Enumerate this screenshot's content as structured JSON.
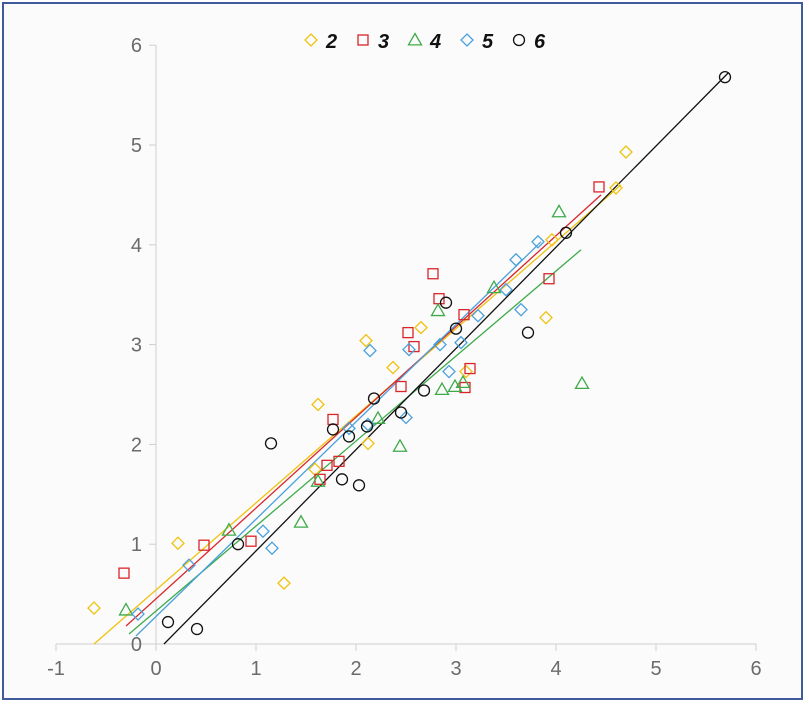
{
  "chart_data": {
    "type": "scatter",
    "title": "",
    "xlabel": "",
    "ylabel": "",
    "xlim": [
      -1,
      6
    ],
    "ylim": [
      0,
      6
    ],
    "x_ticks": [
      "-1",
      "0",
      "1",
      "2",
      "3",
      "4",
      "5",
      "6"
    ],
    "y_ticks": [
      "0",
      "1",
      "2",
      "3",
      "4",
      "5",
      "6"
    ],
    "grid": false,
    "legend_position": "top-center",
    "series": [
      {
        "name": "2",
        "color": "#f0c20f",
        "marker": "diamond",
        "points": [
          [
            -0.62,
            0.36
          ],
          [
            0.22,
            1.01
          ],
          [
            1.28,
            0.61
          ],
          [
            1.59,
            1.75
          ],
          [
            1.62,
            2.4
          ],
          [
            2.1,
            3.04
          ],
          [
            2.12,
            2.01
          ],
          [
            2.37,
            2.77
          ],
          [
            2.65,
            3.17
          ],
          [
            3.1,
            2.73
          ],
          [
            3.96,
            4.05
          ],
          [
            3.9,
            3.27
          ],
          [
            4.6,
            4.57
          ],
          [
            4.7,
            4.93
          ]
        ],
        "fit": [
          [
            -0.62,
            0.0
          ],
          [
            4.65,
            4.6
          ]
        ]
      },
      {
        "name": "3",
        "color": "#d9262b",
        "marker": "square",
        "points": [
          [
            -0.32,
            0.71
          ],
          [
            0.48,
            0.99
          ],
          [
            0.95,
            1.03
          ],
          [
            1.64,
            1.65
          ],
          [
            1.71,
            1.79
          ],
          [
            1.77,
            2.25
          ],
          [
            1.83,
            1.83
          ],
          [
            2.45,
            2.58
          ],
          [
            2.52,
            3.12
          ],
          [
            2.58,
            2.98
          ],
          [
            2.77,
            3.71
          ],
          [
            2.83,
            3.46
          ],
          [
            3.08,
            3.3
          ],
          [
            3.09,
            2.57
          ],
          [
            3.14,
            2.76
          ],
          [
            3.93,
            3.66
          ],
          [
            4.43,
            4.58
          ]
        ],
        "fit": [
          [
            -0.3,
            0.18
          ],
          [
            4.45,
            4.5
          ]
        ]
      },
      {
        "name": "4",
        "color": "#3eab4a",
        "marker": "triangle",
        "points": [
          [
            -0.3,
            0.34
          ],
          [
            0.73,
            1.14
          ],
          [
            1.45,
            1.22
          ],
          [
            1.62,
            1.63
          ],
          [
            2.22,
            2.26
          ],
          [
            2.44,
            1.98
          ],
          [
            2.82,
            3.34
          ],
          [
            2.86,
            2.55
          ],
          [
            2.99,
            2.58
          ],
          [
            3.07,
            2.62
          ],
          [
            3.38,
            3.57
          ],
          [
            4.03,
            4.33
          ],
          [
            4.26,
            2.61
          ]
        ],
        "fit": [
          [
            -0.27,
            0.1
          ],
          [
            4.25,
            3.95
          ]
        ]
      },
      {
        "name": "5",
        "color": "#4aa1dc",
        "marker": "diamond",
        "points": [
          [
            -0.18,
            0.3
          ],
          [
            0.33,
            0.79
          ],
          [
            1.07,
            1.13
          ],
          [
            1.16,
            0.96
          ],
          [
            1.93,
            2.16
          ],
          [
            2.12,
            2.2
          ],
          [
            2.14,
            2.94
          ],
          [
            2.5,
            2.27
          ],
          [
            2.53,
            2.95
          ],
          [
            2.84,
            3.0
          ],
          [
            2.93,
            2.73
          ],
          [
            3.05,
            3.02
          ],
          [
            3.22,
            3.29
          ],
          [
            3.5,
            3.55
          ],
          [
            3.6,
            3.85
          ],
          [
            3.65,
            3.35
          ],
          [
            3.82,
            4.03
          ]
        ],
        "fit": [
          [
            -0.2,
            0.08
          ],
          [
            3.85,
            4.03
          ]
        ]
      },
      {
        "name": "6",
        "color": "#111111",
        "marker": "circle",
        "points": [
          [
            0.12,
            0.22
          ],
          [
            0.41,
            0.15
          ],
          [
            0.82,
            1.0
          ],
          [
            1.15,
            2.01
          ],
          [
            1.77,
            2.15
          ],
          [
            1.86,
            1.65
          ],
          [
            1.93,
            2.08
          ],
          [
            2.03,
            1.59
          ],
          [
            2.11,
            2.18
          ],
          [
            2.18,
            2.46
          ],
          [
            2.45,
            2.32
          ],
          [
            2.68,
            2.54
          ],
          [
            2.9,
            3.42
          ],
          [
            3.0,
            3.16
          ],
          [
            3.72,
            3.12
          ],
          [
            4.1,
            4.12
          ],
          [
            5.69,
            5.68
          ]
        ],
        "fit": [
          [
            0.08,
            0.0
          ],
          [
            5.72,
            5.72
          ]
        ]
      }
    ]
  }
}
